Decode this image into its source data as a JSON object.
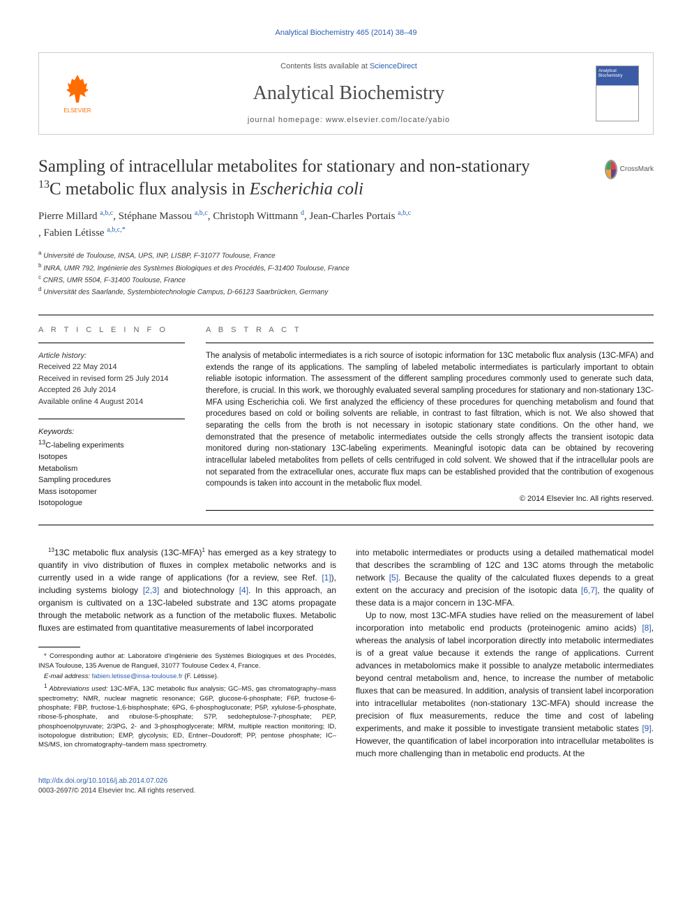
{
  "top_header": "Analytical Biochemistry 465 (2014) 38–49",
  "contents_line_prefix": "Contents lists available at ",
  "contents_link": "ScienceDirect",
  "journal_name": "Analytical Biochemistry",
  "homepage_line": "journal homepage: www.elsevier.com/locate/yabio",
  "elsevier_label": "ELSEVIER",
  "cover_brand": "Analytical Biochemistry",
  "title_line1": "Sampling of intracellular metabolites for stationary and non-stationary",
  "title_line2_pre": "",
  "title_line2_sup": "13",
  "title_line2_post": "C metabolic flux analysis in ",
  "title_line2_ital": "Escherichia coli",
  "crossmark_label": "CrossMark",
  "authors": [
    {
      "name": "Pierre Millard ",
      "aff": "a,b,c"
    },
    {
      "name": ", Stéphane Massou ",
      "aff": "a,b,c"
    },
    {
      "name": ", Christoph Wittmann ",
      "aff": "d"
    },
    {
      "name": ", Jean-Charles Portais ",
      "aff": "a,b,c"
    },
    {
      "name": ", Fabien Létisse ",
      "aff": "a,b,c,*"
    }
  ],
  "affiliations": [
    {
      "sup": "a",
      "text": " Université de Toulouse, INSA, UPS, INP, LISBP, F-31077 Toulouse, France"
    },
    {
      "sup": "b",
      "text": " INRA, UMR 792, Ingénierie des Systèmes Biologiques et des Procédés, F-31400 Toulouse, France"
    },
    {
      "sup": "c",
      "text": " CNRS, UMR 5504, F-31400 Toulouse, France"
    },
    {
      "sup": "d",
      "text": " Universität des Saarlande, Systembiotechnologie Campus, D-66123 Saarbrücken, Germany"
    }
  ],
  "article_info_head": "a r t i c l e   i n f o",
  "abstract_head": "a b s t r a c t",
  "history_label": "Article history:",
  "history": [
    "Received 22 May 2014",
    "Received in revised form 25 July 2014",
    "Accepted 26 July 2014",
    "Available online 4 August 2014"
  ],
  "keywords_label": "Keywords:",
  "keywords": [
    "13C-labeling experiments",
    "Isotopes",
    "Metabolism",
    "Sampling procedures",
    "Mass isotopomer",
    "Isotopologue"
  ],
  "abstract": "The analysis of metabolic intermediates is a rich source of isotopic information for 13C metabolic flux analysis (13C-MFA) and extends the range of its applications. The sampling of labeled metabolic intermediates is particularly important to obtain reliable isotopic information. The assessment of the different sampling procedures commonly used to generate such data, therefore, is crucial. In this work, we thoroughly evaluated several sampling procedures for stationary and non-stationary 13C-MFA using Escherichia coli. We first analyzed the efficiency of these procedures for quenching metabolism and found that procedures based on cold or boiling solvents are reliable, in contrast to fast filtration, which is not. We also showed that separating the cells from the broth is not necessary in isotopic stationary state conditions. On the other hand, we demonstrated that the presence of metabolic intermediates outside the cells strongly affects the transient isotopic data monitored during non-stationary 13C-labeling experiments. Meaningful isotopic data can be obtained by recovering intracellular labeled metabolites from pellets of cells centrifuged in cold solvent. We showed that if the intracellular pools are not separated from the extracellular ones, accurate flux maps can be established provided that the contribution of exogenous compounds is taken into account in the metabolic flux model.",
  "copyright": "© 2014 Elsevier Inc. All rights reserved.",
  "body_left": {
    "p1_pre": "13C metabolic flux analysis (13C-MFA)",
    "p1_fn": "1",
    "p1_mid": " has emerged as a key strategy to quantify in vivo distribution of fluxes in complex metabolic networks and is currently used in a wide range of applications (for a review, see Ref. ",
    "p1_ref1": "[1]",
    "p1_mid2": "), including systems biology ",
    "p1_ref2": "[2,3]",
    "p1_mid3": " and biotechnology ",
    "p1_ref3": "[4]",
    "p1_post": ". In this approach, an organism is cultivated on a 13C-labeled substrate and 13C atoms propagate through the metabolic network as a function of the metabolic fluxes. Metabolic fluxes are estimated from quantitative measurements of label incorporated"
  },
  "body_right": {
    "p1_pre": "into metabolic intermediates or products using a detailed mathematical model that describes the scrambling of 12C and 13C atoms through the metabolic network ",
    "p1_ref1": "[5]",
    "p1_mid": ". Because the quality of the calculated fluxes depends to a great extent on the accuracy and precision of the isotopic data ",
    "p1_ref2": "[6,7]",
    "p1_post": ", the quality of these data is a major concern in 13C-MFA.",
    "p2_pre": "Up to now, most 13C-MFA studies have relied on the measurement of label incorporation into metabolic end products (proteinogenic amino acids) ",
    "p2_ref1": "[8]",
    "p2_mid": ", whereas the analysis of label incorporation directly into metabolic intermediates is of a great value because it extends the range of applications. Current advances in metabolomics make it possible to analyze metabolic intermediates beyond central metabolism and, hence, to increase the number of metabolic fluxes that can be measured. In addition, analysis of transient label incorporation into intracellular metabolites (non-stationary 13C-MFA) should increase the precision of flux measurements, reduce the time and cost of labeling experiments, and make it possible to investigate transient metabolic states ",
    "p2_ref2": "[9]",
    "p2_post": ". However, the quantification of label incorporation into intracellular metabolites is much more challenging than in metabolic end products. At the"
  },
  "footnotes": {
    "corr": "* Corresponding author at: Laboratoire d'ingénierie des Systèmes Biologiques et des Procédés, INSA Toulouse, 135 Avenue de Rangueil, 31077 Toulouse Cedex 4, France.",
    "email_label": "E-mail address: ",
    "email": "fabien.letisse@insa-toulouse.fr",
    "email_suffix": " (F. Létisse).",
    "abbrev_sup": "1",
    "abbrev_label": " Abbreviations used: ",
    "abbrev": "13C-MFA, 13C metabolic flux analysis; GC–MS, gas chromatography–mass spectrometry; NMR, nuclear magnetic resonance; G6P, glucose-6-phosphate; F6P, fructose-6-phosphate; FBP, fructose-1,6-bisphosphate; 6PG, 6-phosphogluconate; P5P, xylulose-5-phosphate, ribose-5-phosphate, and ribulose-5-phosphate; S7P, sedoheptulose-7-phosphate; PEP, phosphoenolpyruvate; 2/3PG, 2- and 3-phosphoglycerate; MRM, multiple reaction monitoring; ID, isotopologue distribution; EMP, glycolysis; ED, Entner–Doudoroff; PP, pentose phosphate; IC–MS/MS, ion chromatography–tandem mass spectrometry."
  },
  "footer": {
    "doi": "http://dx.doi.org/10.1016/j.ab.2014.07.026",
    "issn": "0003-2697/© 2014 Elsevier Inc. All rights reserved."
  },
  "colors": {
    "link": "#2a5db0",
    "text": "#1a1a1a",
    "elsevier_orange": "#ff6c00"
  }
}
